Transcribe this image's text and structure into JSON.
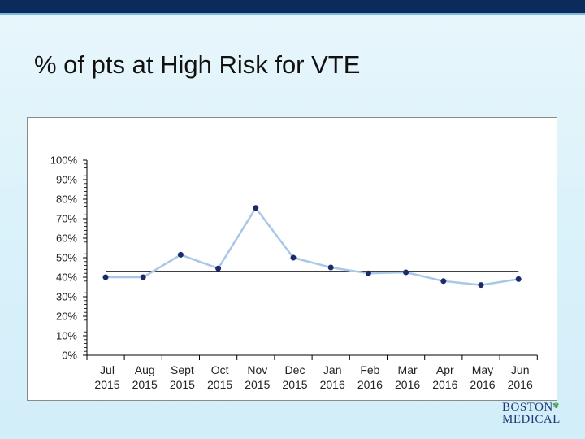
{
  "slide": {
    "title": "% of pts at High Risk for VTE",
    "logo_line1": "BOSTON",
    "logo_line2": "MEDICAL",
    "logo_icon": "leaf-icon"
  },
  "colors": {
    "header_bar": "#0d2a5c",
    "stripe": "#7fb8da",
    "line": "#a9c8e8",
    "marker": "#1a2b6b",
    "reference_line": "#000000"
  },
  "chart_data": {
    "type": "line",
    "title": "",
    "xlabel": "",
    "ylabel": "",
    "yticks": [
      "100%",
      "90%",
      "80%",
      "70%",
      "60%",
      "50%",
      "40%",
      "30%",
      "20%",
      "10%",
      "0%"
    ],
    "categories": [
      [
        "Jul",
        "2015"
      ],
      [
        "Aug",
        "2015"
      ],
      [
        "Sept",
        "2015"
      ],
      [
        "Oct",
        "2015"
      ],
      [
        "Nov",
        "2015"
      ],
      [
        "Dec",
        "2015"
      ],
      [
        "Jan",
        "2016"
      ],
      [
        "Feb",
        "2016"
      ],
      [
        "Mar",
        "2016"
      ],
      [
        "Apr",
        "2016"
      ],
      [
        "May",
        "2016"
      ],
      [
        "Jun",
        "2016"
      ]
    ],
    "series": [
      {
        "values": [
          40,
          40,
          51.5,
          44.5,
          75.5,
          50,
          45,
          42,
          42.5,
          38,
          36,
          39
        ]
      }
    ],
    "reference_line": 43,
    "ylim": [
      0,
      100
    ],
    "grid": false,
    "legend": "none"
  }
}
